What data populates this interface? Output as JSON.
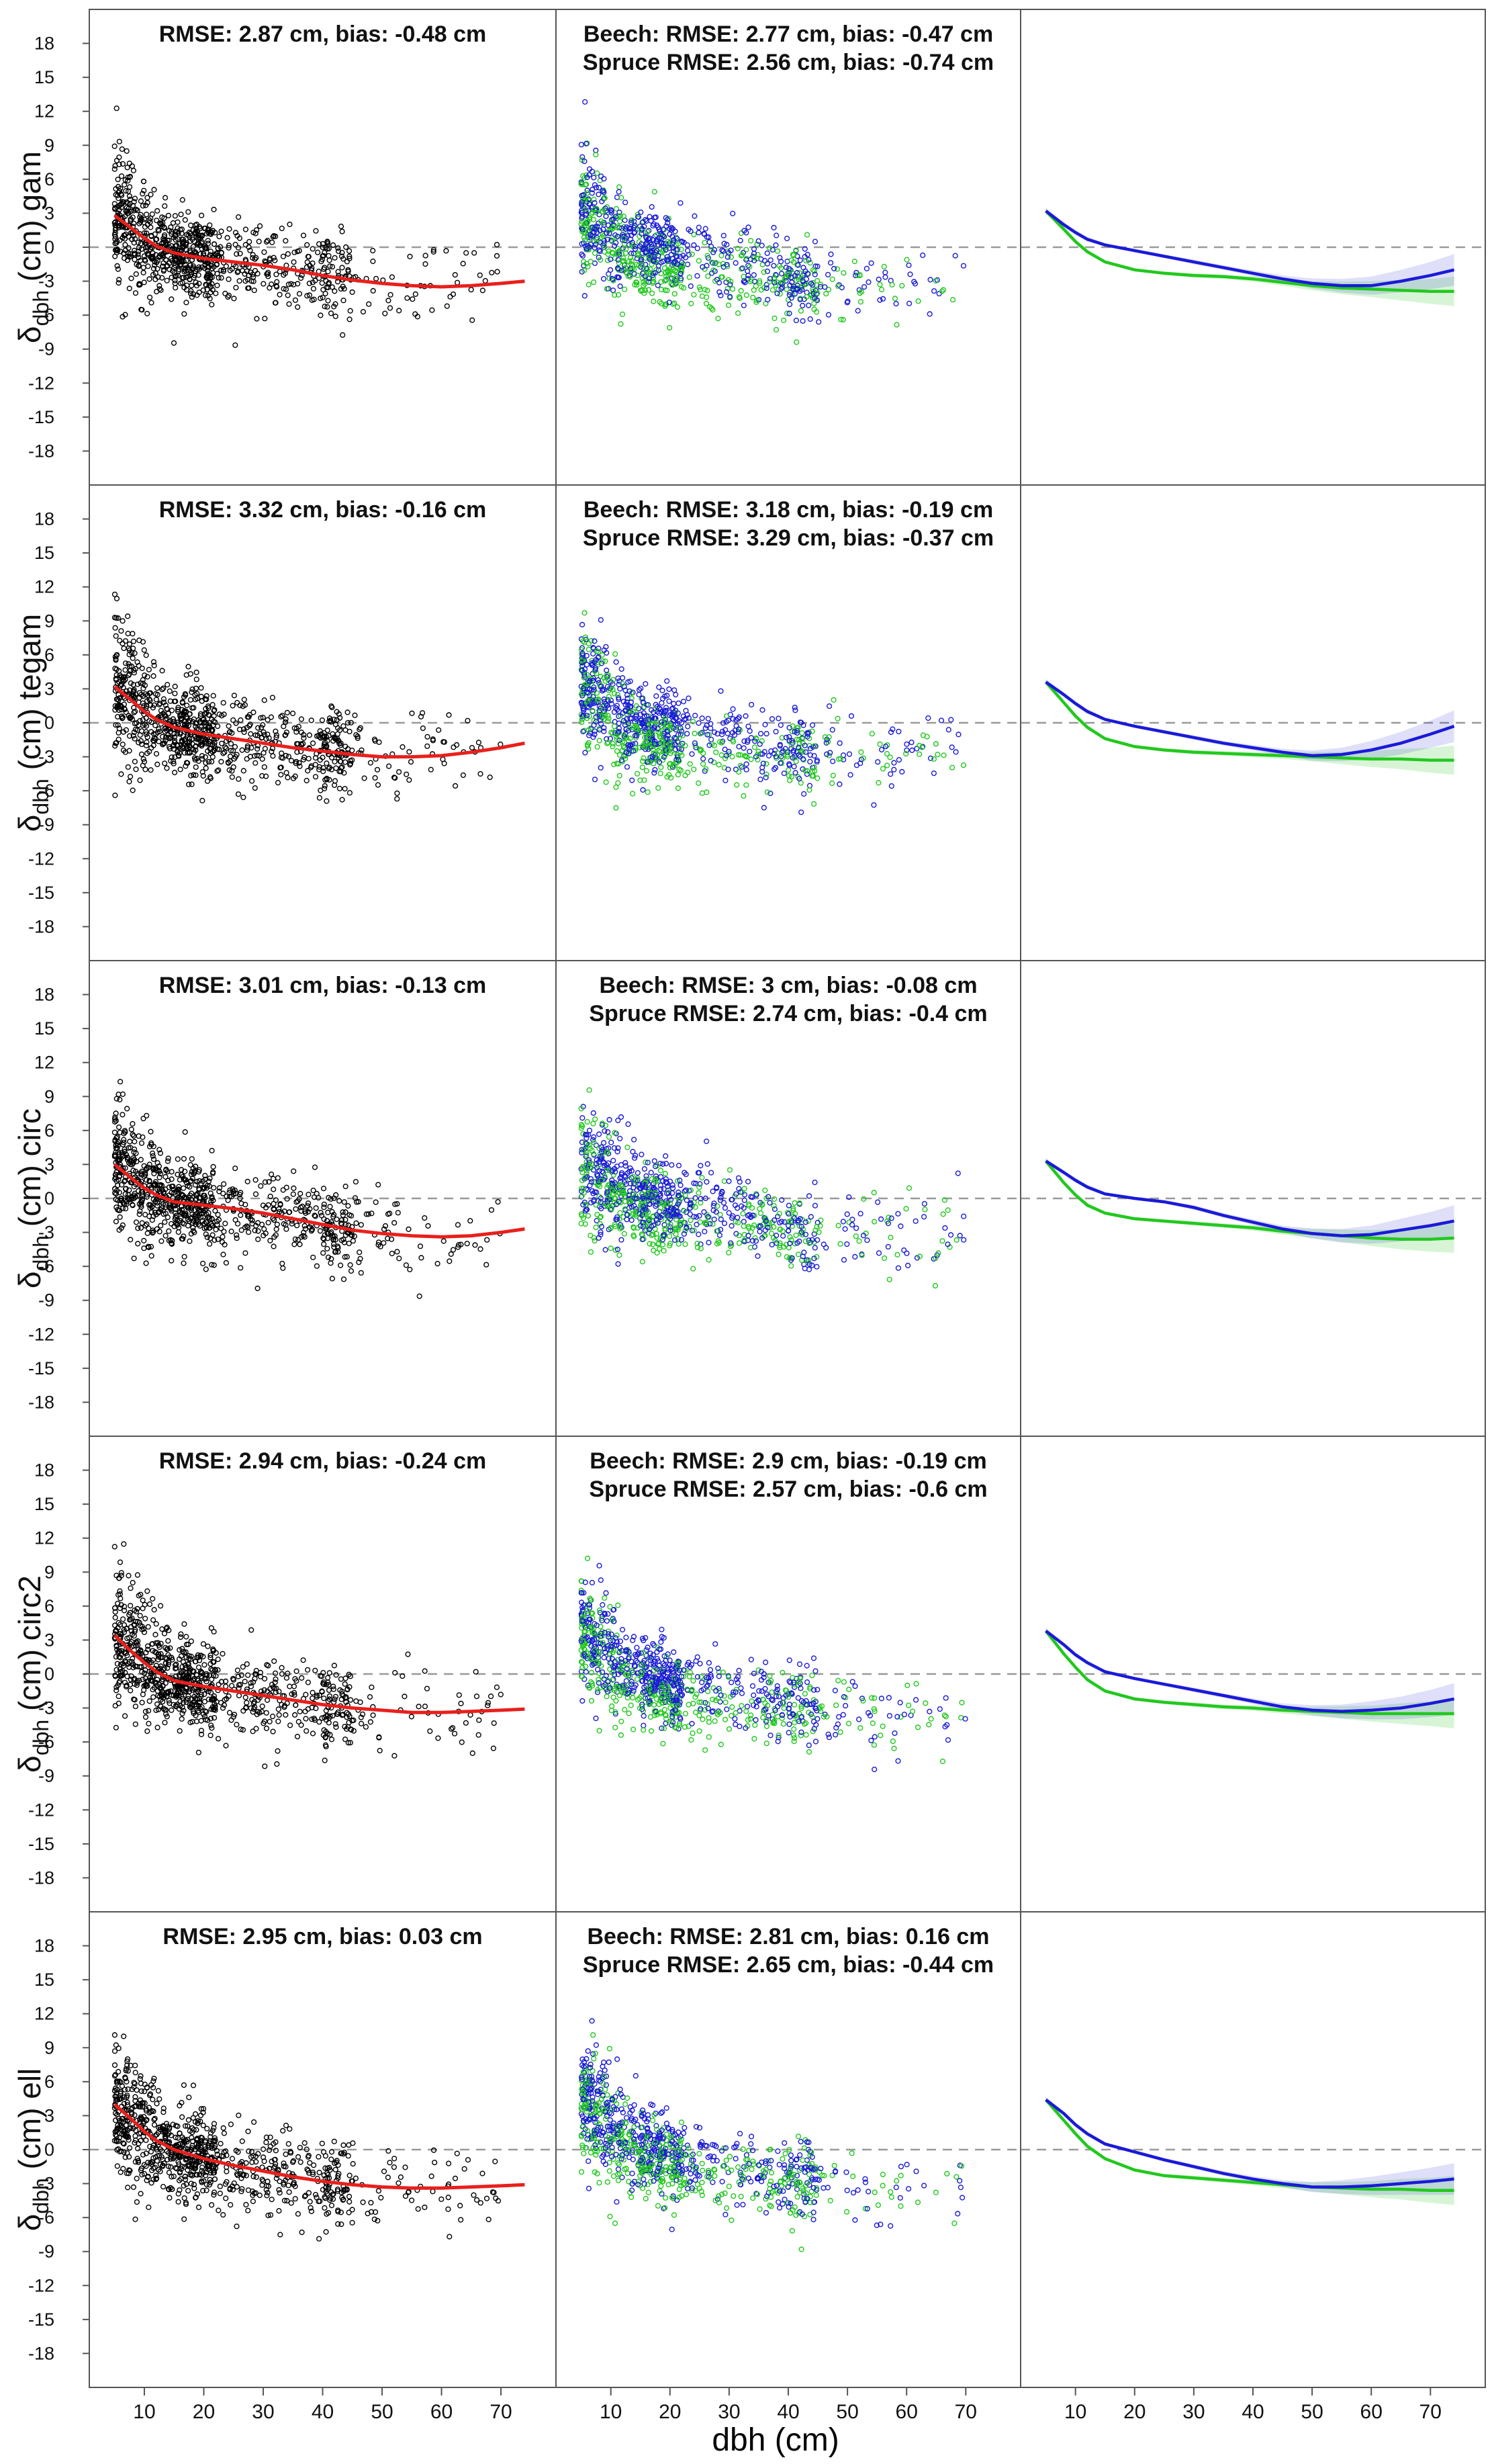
{
  "figure": {
    "x_axis_label": "dbh (cm)",
    "y_axis_label_main": "δ",
    "y_axis_label_sub": "dbh",
    "y_axis_label_unit": "(cm)"
  },
  "chart_data": {
    "type": "scatter",
    "layout": "5 rows x 3 columns grid, shared axes",
    "xlim": [
      3,
      77
    ],
    "ylim": [
      -21,
      21
    ],
    "x_ticks": [
      10,
      20,
      30,
      40,
      50,
      60,
      70
    ],
    "y_ticks": [
      18,
      15,
      12,
      9,
      6,
      3,
      0,
      -3,
      -6,
      -9,
      -12,
      -15,
      -18
    ],
    "reference_line_y": 0,
    "colors": {
      "all": "#000000",
      "fit_all": "#e8201c",
      "beech": "#1a1ad8",
      "spruce": "#22c81e",
      "reference": "#999999"
    },
    "columns": [
      "all trees (black points, red smooth)",
      "Beech (blue) and Spruce (green) points",
      "Beech (blue) and Spruce (green) smooth curves with confidence bands"
    ],
    "rows": [
      {
        "method": "gam",
        "all_stats": "RMSE: 2.87 cm, bias: -0.48 cm",
        "beech_stats": "Beech: RMSE: 2.77 cm, bias: -0.47 cm",
        "spruce_stats": "Spruce RMSE: 2.56 cm, bias: -0.74 cm",
        "fit_all": {
          "x": [
            5,
            8,
            10,
            12,
            15,
            20,
            25,
            30,
            35,
            40,
            45,
            50,
            55,
            60,
            65,
            70,
            74
          ],
          "y": [
            2.8,
            1.6,
            0.8,
            0.1,
            -0.5,
            -1.0,
            -1.3,
            -1.6,
            -2.0,
            -2.5,
            -2.9,
            -3.2,
            -3.4,
            -3.5,
            -3.4,
            -3.2,
            -3.0
          ]
        },
        "fit_beech": {
          "x": [
            5,
            8,
            10,
            12,
            15,
            20,
            25,
            30,
            35,
            40,
            45,
            50,
            55,
            60,
            65,
            70,
            74
          ],
          "y": [
            3.2,
            2.0,
            1.3,
            0.7,
            0.2,
            -0.3,
            -0.8,
            -1.3,
            -1.8,
            -2.3,
            -2.8,
            -3.2,
            -3.4,
            -3.4,
            -3.0,
            -2.5,
            -2.0
          ]
        },
        "fit_spruce": {
          "x": [
            5,
            8,
            10,
            12,
            15,
            20,
            25,
            30,
            35,
            40,
            45,
            50,
            55,
            60,
            65,
            70,
            74
          ],
          "y": [
            3.2,
            1.6,
            0.5,
            -0.4,
            -1.3,
            -2.0,
            -2.3,
            -2.5,
            -2.6,
            -2.8,
            -3.1,
            -3.4,
            -3.6,
            -3.7,
            -3.8,
            -3.9,
            -3.9
          ]
        },
        "band_beech_halfwidth": [
          0.25,
          0.2,
          0.2,
          0.2,
          0.15,
          0.15,
          0.15,
          0.2,
          0.2,
          0.25,
          0.3,
          0.45,
          0.6,
          0.8,
          1.0,
          1.2,
          1.4
        ],
        "band_spruce_halfwidth": [
          0.25,
          0.2,
          0.2,
          0.2,
          0.15,
          0.15,
          0.15,
          0.2,
          0.2,
          0.25,
          0.3,
          0.4,
          0.55,
          0.7,
          0.9,
          1.1,
          1.3
        ]
      },
      {
        "method": "tegam",
        "all_stats": "RMSE: 3.32 cm, bias: -0.16 cm",
        "beech_stats": "Beech: RMSE: 3.18 cm, bias: -0.19 cm",
        "spruce_stats": "Spruce RMSE: 3.29 cm, bias: -0.37 cm",
        "fit_all": {
          "x": [
            5,
            8,
            10,
            12,
            15,
            20,
            25,
            30,
            35,
            40,
            45,
            50,
            55,
            60,
            65,
            70,
            74
          ],
          "y": [
            3.2,
            1.9,
            1.0,
            0.3,
            -0.4,
            -1.0,
            -1.4,
            -1.8,
            -2.2,
            -2.5,
            -2.8,
            -3.0,
            -3.0,
            -2.9,
            -2.6,
            -2.2,
            -1.8
          ]
        },
        "fit_beech": {
          "x": [
            5,
            8,
            10,
            12,
            15,
            20,
            25,
            30,
            35,
            40,
            45,
            50,
            55,
            60,
            65,
            70,
            74
          ],
          "y": [
            3.6,
            2.5,
            1.7,
            1.0,
            0.3,
            -0.3,
            -0.8,
            -1.3,
            -1.8,
            -2.2,
            -2.6,
            -2.9,
            -2.8,
            -2.4,
            -1.8,
            -1.0,
            -0.3
          ]
        },
        "fit_spruce": {
          "x": [
            5,
            8,
            10,
            12,
            15,
            20,
            25,
            30,
            35,
            40,
            45,
            50,
            55,
            60,
            65,
            70,
            74
          ],
          "y": [
            3.6,
            1.8,
            0.6,
            -0.4,
            -1.4,
            -2.1,
            -2.4,
            -2.6,
            -2.7,
            -2.8,
            -2.9,
            -3.0,
            -3.1,
            -3.2,
            -3.2,
            -3.3,
            -3.3
          ]
        },
        "band_beech_halfwidth": [
          0.25,
          0.2,
          0.2,
          0.2,
          0.15,
          0.15,
          0.15,
          0.2,
          0.2,
          0.25,
          0.3,
          0.45,
          0.6,
          0.8,
          1.0,
          1.2,
          1.4
        ],
        "band_spruce_halfwidth": [
          0.25,
          0.2,
          0.2,
          0.2,
          0.15,
          0.15,
          0.15,
          0.2,
          0.2,
          0.25,
          0.3,
          0.4,
          0.55,
          0.7,
          0.9,
          1.1,
          1.3
        ]
      },
      {
        "method": "circ",
        "all_stats": "RMSE: 3.01 cm, bias: -0.13 cm",
        "beech_stats": "Beech: RMSE: 3 cm, bias: -0.08 cm",
        "spruce_stats": "Spruce RMSE: 2.74 cm, bias: -0.4 cm",
        "fit_all": {
          "x": [
            5,
            8,
            10,
            12,
            15,
            20,
            25,
            30,
            35,
            40,
            45,
            50,
            55,
            60,
            65,
            70,
            74
          ],
          "y": [
            3.0,
            1.7,
            0.9,
            0.3,
            -0.3,
            -0.6,
            -0.9,
            -1.3,
            -1.8,
            -2.3,
            -2.8,
            -3.1,
            -3.3,
            -3.4,
            -3.3,
            -3.0,
            -2.7
          ]
        },
        "fit_beech": {
          "x": [
            5,
            8,
            10,
            12,
            15,
            20,
            25,
            30,
            35,
            40,
            45,
            50,
            55,
            60,
            65,
            70,
            74
          ],
          "y": [
            3.3,
            2.3,
            1.6,
            1.0,
            0.4,
            0.0,
            -0.3,
            -0.8,
            -1.5,
            -2.1,
            -2.7,
            -3.1,
            -3.3,
            -3.2,
            -2.8,
            -2.4,
            -2.0
          ]
        },
        "fit_spruce": {
          "x": [
            5,
            8,
            10,
            12,
            15,
            20,
            25,
            30,
            35,
            40,
            45,
            50,
            55,
            60,
            65,
            70,
            74
          ],
          "y": [
            3.3,
            1.4,
            0.3,
            -0.6,
            -1.3,
            -1.8,
            -2.0,
            -2.2,
            -2.4,
            -2.6,
            -2.9,
            -3.1,
            -3.3,
            -3.5,
            -3.6,
            -3.6,
            -3.5
          ]
        },
        "band_beech_halfwidth": [
          0.25,
          0.2,
          0.2,
          0.2,
          0.15,
          0.15,
          0.15,
          0.2,
          0.2,
          0.25,
          0.3,
          0.45,
          0.6,
          0.8,
          1.0,
          1.2,
          1.4
        ],
        "band_spruce_halfwidth": [
          0.25,
          0.2,
          0.2,
          0.2,
          0.15,
          0.15,
          0.15,
          0.2,
          0.2,
          0.25,
          0.3,
          0.4,
          0.55,
          0.7,
          0.9,
          1.1,
          1.3
        ]
      },
      {
        "method": "circ2",
        "all_stats": "RMSE: 2.94 cm, bias: -0.24 cm",
        "beech_stats": "Beech: RMSE: 2.9 cm, bias: -0.19 cm",
        "spruce_stats": "Spruce RMSE: 2.57 cm, bias: -0.6 cm",
        "fit_all": {
          "x": [
            5,
            8,
            10,
            12,
            15,
            20,
            25,
            30,
            35,
            40,
            45,
            50,
            55,
            60,
            65,
            70,
            74
          ],
          "y": [
            3.4,
            1.9,
            1.0,
            0.2,
            -0.6,
            -1.1,
            -1.5,
            -1.9,
            -2.3,
            -2.7,
            -3.0,
            -3.2,
            -3.4,
            -3.4,
            -3.3,
            -3.2,
            -3.1
          ]
        },
        "fit_beech": {
          "x": [
            5,
            8,
            10,
            12,
            15,
            20,
            25,
            30,
            35,
            40,
            45,
            50,
            55,
            60,
            65,
            70,
            74
          ],
          "y": [
            3.8,
            2.6,
            1.7,
            1.0,
            0.2,
            -0.4,
            -0.9,
            -1.4,
            -1.9,
            -2.4,
            -2.9,
            -3.2,
            -3.3,
            -3.2,
            -3.0,
            -2.6,
            -2.2
          ]
        },
        "fit_spruce": {
          "x": [
            5,
            8,
            10,
            12,
            15,
            20,
            25,
            30,
            35,
            40,
            45,
            50,
            55,
            60,
            65,
            70,
            74
          ],
          "y": [
            3.8,
            1.8,
            0.6,
            -0.5,
            -1.5,
            -2.2,
            -2.5,
            -2.7,
            -2.9,
            -3.0,
            -3.2,
            -3.3,
            -3.4,
            -3.5,
            -3.5,
            -3.5,
            -3.5
          ]
        },
        "band_beech_halfwidth": [
          0.25,
          0.2,
          0.2,
          0.2,
          0.15,
          0.15,
          0.15,
          0.2,
          0.2,
          0.25,
          0.3,
          0.45,
          0.6,
          0.8,
          1.0,
          1.2,
          1.4
        ],
        "band_spruce_halfwidth": [
          0.25,
          0.2,
          0.2,
          0.2,
          0.15,
          0.15,
          0.15,
          0.2,
          0.2,
          0.25,
          0.3,
          0.4,
          0.55,
          0.7,
          0.9,
          1.1,
          1.3
        ]
      },
      {
        "method": "ell",
        "all_stats": "RMSE: 2.95 cm, bias: 0.03 cm",
        "beech_stats": "Beech: RMSE: 2.81 cm, bias: 0.16 cm",
        "spruce_stats": "Spruce RMSE: 2.65 cm, bias: -0.44 cm",
        "fit_all": {
          "x": [
            5,
            8,
            10,
            12,
            15,
            20,
            25,
            30,
            35,
            40,
            45,
            50,
            55,
            60,
            65,
            70,
            74
          ],
          "y": [
            4.0,
            2.6,
            1.6,
            0.8,
            0.0,
            -0.8,
            -1.4,
            -1.9,
            -2.4,
            -2.8,
            -3.1,
            -3.3,
            -3.4,
            -3.4,
            -3.3,
            -3.2,
            -3.1
          ]
        },
        "fit_beech": {
          "x": [
            5,
            8,
            10,
            12,
            15,
            20,
            25,
            30,
            35,
            40,
            45,
            50,
            55,
            60,
            65,
            70,
            74
          ],
          "y": [
            4.4,
            3.2,
            2.2,
            1.4,
            0.5,
            -0.2,
            -0.9,
            -1.5,
            -2.1,
            -2.6,
            -3.0,
            -3.3,
            -3.3,
            -3.2,
            -3.0,
            -2.8,
            -2.6
          ]
        },
        "fit_spruce": {
          "x": [
            5,
            8,
            10,
            12,
            15,
            20,
            25,
            30,
            35,
            40,
            45,
            50,
            55,
            60,
            65,
            70,
            74
          ],
          "y": [
            4.4,
            2.6,
            1.4,
            0.3,
            -0.8,
            -1.8,
            -2.3,
            -2.5,
            -2.7,
            -2.9,
            -3.1,
            -3.3,
            -3.4,
            -3.5,
            -3.5,
            -3.6,
            -3.6
          ]
        },
        "band_beech_halfwidth": [
          0.25,
          0.2,
          0.2,
          0.2,
          0.15,
          0.15,
          0.15,
          0.2,
          0.2,
          0.25,
          0.3,
          0.45,
          0.6,
          0.8,
          1.0,
          1.2,
          1.4
        ],
        "band_spruce_halfwidth": [
          0.25,
          0.2,
          0.2,
          0.2,
          0.15,
          0.15,
          0.15,
          0.2,
          0.2,
          0.25,
          0.3,
          0.4,
          0.55,
          0.7,
          0.9,
          1.1,
          1.3
        ]
      }
    ]
  }
}
